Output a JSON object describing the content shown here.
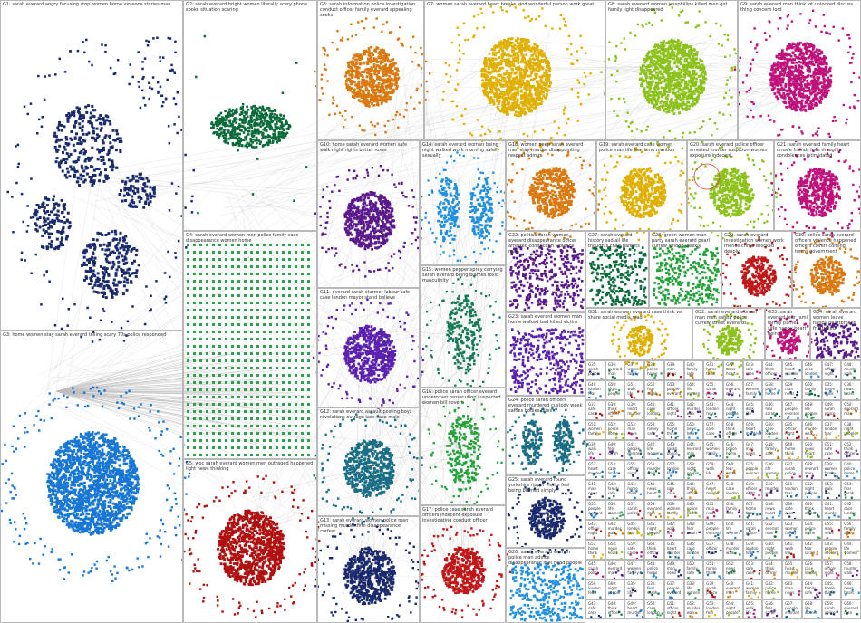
{
  "groups": [
    {
      "id": "G1",
      "label": "G1: sarah everard angry focusing stop women home violence stories man",
      "color": "#1a2a6c"
    },
    {
      "id": "G2",
      "label": "G2: sarah everard bright women literally scary phone spoke situation scaring",
      "color": "#0b6b3a"
    },
    {
      "id": "G3",
      "label": "G3: home women stay sarah everard telling scary 70s police responded",
      "color": "#1877d4"
    },
    {
      "id": "G4",
      "label": "G4: sarah everard women men police family case disappearance women home",
      "color": "#2ba24c"
    },
    {
      "id": "G5",
      "label": "G5: woc sarah everard women men outraged happened light news thinking",
      "color": "#b01010"
    },
    {
      "id": "G6",
      "label": "G6: sarah information police investigation conduct officer family everard appealing seeks",
      "color": "#d9790f"
    },
    {
      "id": "G7",
      "label": "G7: women sarah everard heart breaks kind wonderful person work great",
      "color": "#e0b000"
    },
    {
      "id": "G8",
      "label": "G8: sarah everard women jessphillips killed men girl family light disappeared",
      "color": "#8cc21c"
    },
    {
      "id": "G9",
      "label": "G9: sarah everard men think lot unlocked discuss thing concern lord",
      "color": "#c0107a"
    },
    {
      "id": "G10",
      "label": "G10: home sarah everard women safe walk night rights better roses",
      "color": "#5a1a8c"
    },
    {
      "id": "G11",
      "label": "G11: everard sarah starmer labour safe case london mayor stand believe",
      "color": "#5a20b0"
    },
    {
      "id": "G12",
      "label": "G12: sarah everard assault posting boys revelations outrage lads case male",
      "color": "#1a6e86"
    },
    {
      "id": "G13",
      "label": "G13: sarah everard women police man missing murder firm disappearance curfew",
      "color": "#1a2a6c"
    },
    {
      "id": "G14",
      "label": "G14: sarah everard woman being night walked work morning safety sexually",
      "color": "#2090e0"
    },
    {
      "id": "G15",
      "label": "G15: women pepper spray carrying sarah everard being blames toxic masculinity",
      "color": "#157a55"
    },
    {
      "id": "G16",
      "label": "G16: police sarah officer everard undercover prosecution suspected women bill covert",
      "color": "#24a23a"
    },
    {
      "id": "G17",
      "label": "G17: police case sarah everard officers indecent exposure investigating conduct officer",
      "color": "#c01818"
    },
    {
      "id": "G18",
      "label": "G18: women peep sarah everard men stay murder disappointing respect admire",
      "color": "#d9790f"
    },
    {
      "id": "G19",
      "label": "G19: sarah everard case women police man life fear time mention",
      "color": "#e0b000"
    },
    {
      "id": "G20",
      "label": "G20: sarah everard police officer arrested murder suspicion women exposure indecent",
      "color": "#8cc21c"
    },
    {
      "id": "G21",
      "label": "G21: sarah everard family heart unsafe friends love thoughts condolences intimidated",
      "color": "#c0107a"
    },
    {
      "id": "G22",
      "label": "G22: politics sarah women everard disappearance officer arrested connection violence man",
      "color": "#5a1a8c"
    },
    {
      "id": "G23",
      "label": "G23: sarah everard women man home walked bad killed victim",
      "color": "#5a20b0"
    },
    {
      "id": "G24",
      "label": "G24: police sarah officers everard murdered custody week saffles bodies bites",
      "color": "#1a6e86"
    },
    {
      "id": "G25",
      "label": "G25: sarah everard found yorkshire ripper victim feel being blamed simply",
      "color": "#1a2a6c"
    },
    {
      "id": "G26",
      "label": "G26: sarah everard women police man advice disappearance met head people",
      "color": "#2090e0"
    },
    {
      "id": "G27",
      "label": "G27: sarah everard history sad all life thoughts chair parents",
      "color": "#0b6b3a"
    },
    {
      "id": "G28",
      "label": "G28: green women man party sarah everard pearl curfew london weekly",
      "color": "#24a23a"
    },
    {
      "id": "G29",
      "label": "G29: sarah everard investigation women work friends crime shocked deeply",
      "color": "#c01818"
    },
    {
      "id": "G30",
      "label": "G30: police sarah everard officers violence happened officers covert coming terms government",
      "color": "#d9790f"
    },
    {
      "id": "G31",
      "label": "G31: sarah women everard case think ve share social media read",
      "color": "#e0b000"
    },
    {
      "id": "G32",
      "label": "G32: sarah everard women man men safety police curfew street everards",
      "color": "#8cc21c"
    },
    {
      "id": "G33",
      "label": "G33: sarah everard fear rami family parnell safe happy heart being",
      "color": "#c0107a"
    },
    {
      "id": "G34",
      "label": "G34: sarah everard women leave happy heartbroken frustrated",
      "color": "#5a1a8c"
    }
  ],
  "small_labels": [
    "G35",
    "G36",
    "G37",
    "G38",
    "G39",
    "G40",
    "G41",
    "G42",
    "G43",
    "G44",
    "G45",
    "G46",
    "G47",
    "G48",
    "G49",
    "G50",
    "G51",
    "G52",
    "G53",
    "G54",
    "G55",
    "G56",
    "G57",
    "G58",
    "G59",
    "G60"
  ],
  "small_words": [
    "sarah",
    "everard",
    "women",
    "police",
    "man",
    "family",
    "home",
    "news",
    "safe",
    "think",
    "heart",
    "case",
    "officer",
    "murder",
    "london",
    "night",
    "walk",
    "fear",
    "people",
    "life"
  ],
  "misc_colors": {
    "edge": "#c8c8c8",
    "panel_border": "#b9b9b9",
    "grid_square": "#2ba24c",
    "red_ring": "#e04040"
  }
}
